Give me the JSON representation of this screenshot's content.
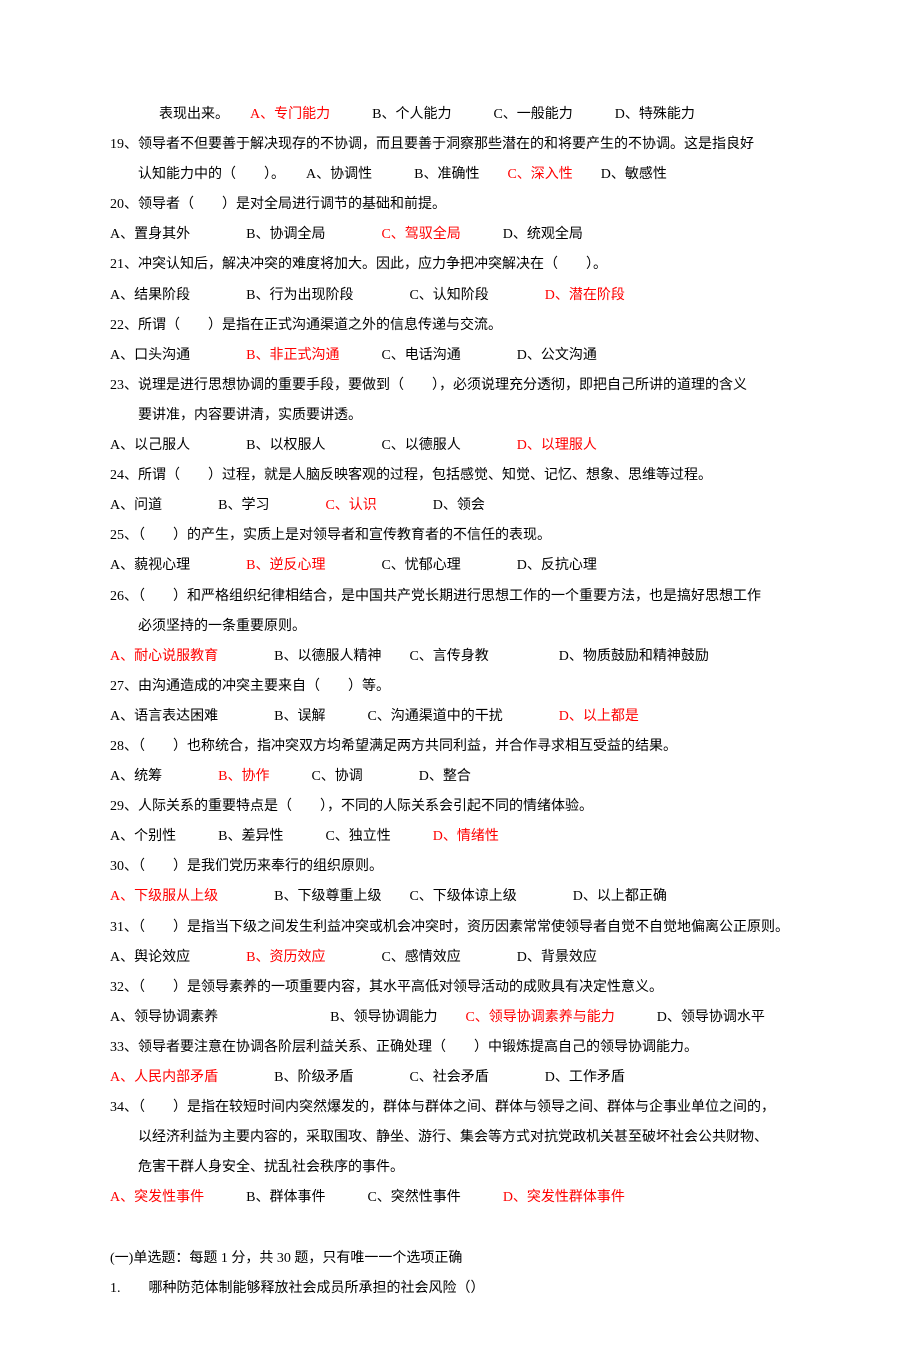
{
  "colors": {
    "text": "#000000",
    "highlight": "#ff0000",
    "background": "#ffffff"
  },
  "typography": {
    "font_family": "SimSun",
    "font_size_pt": 10.5,
    "line_height": 2.15
  },
  "q18": {
    "tail": "表现出来。　　",
    "a": "A、专门能力",
    "b": "　　　B、个人能力　　　C、一般能力　　　D、特殊能力"
  },
  "q19": {
    "stem": "19、领导者不但要善于解决现存的不协调，而且要善于洞察那些潜在的和将要产生的不协调。这是指良好",
    "stem2": "认知能力中的（　　）。　　A、协调性　　　B、准确性　　",
    "c": "C、深入性",
    "d": "　　D、敏感性"
  },
  "q20": {
    "stem": "20、领导者（　　）是对全局进行调节的基础和前提。",
    "opts1": "A、置身其外　　　　B、协调全局　　　　",
    "c": "C、驾驭全局",
    "opts2": "　　　D、统观全局"
  },
  "q21": {
    "stem": "21、冲突认知后，解决冲突的难度将加大。因此，应力争把冲突解决在（　　）。",
    "opts1": "A、结果阶段　　　　B、行为出现阶段　　　　C、认知阶段　　　　",
    "d": "D、潜在阶段"
  },
  "q22": {
    "stem": "22、所谓（　　）是指在正式沟通渠道之外的信息传递与交流。",
    "a1": "A、口头沟通　　　　",
    "b": "B、非正式沟通",
    "a2": "　　　C、电话沟通　　　　D、公文沟通"
  },
  "q23": {
    "stem": "23、说理是进行思想协调的重要手段，要做到（　　），必须说理充分透彻，即把自己所讲的道理的含义",
    "stem2": "要讲准，内容要讲清，实质要讲透。",
    "opts1": "A、以己服人　　　　B、以权服人　　　　C、以德服人　　　　",
    "d": "D、以理服人"
  },
  "q24": {
    "stem": "24、所谓（　　）过程，就是人脑反映客观的过程，包括感觉、知觉、记忆、想象、思维等过程。",
    "a1": "A、问道　　　　B、学习　　　　",
    "c": "C、认识",
    "a2": "　　　　D、领会"
  },
  "q25": {
    "stem": "25、（　　）的产生，实质上是对领导者和宣传教育者的不信任的表现。",
    "a1": "A、藐视心理　　　　",
    "b": "B、逆反心理",
    "a2": "　　　　C、忧郁心理　　　　D、反抗心理"
  },
  "q26": {
    "stem": "26、（　　）和严格组织纪律相结合，是中国共产党长期进行思想工作的一个重要方法，也是搞好思想工作",
    "stem2": "必须坚持的一条重要原则。",
    "a": "A、耐心说服教育",
    "rest": "　　　　B、以德服人精神　　C、言传身教　　　　　D、物质鼓励和精神鼓励"
  },
  "q27": {
    "stem": "27、由沟通造成的冲突主要来自（　　）等。",
    "opts1": "A、语言表达困难　　　　B、误解　　　C、沟通渠道中的干扰　　　　",
    "d": "D、以上都是"
  },
  "q28": {
    "stem": "28、（　　）也称统合，指冲突双方均希望满足两方共同利益，并合作寻求相互受益的结果。",
    "a1": "A、统筹　　　　",
    "b": "B、协作",
    "a2": "　　　C、协调　　　　D、整合"
  },
  "q29": {
    "stem": "29、人际关系的重要特点是（　　），不同的人际关系会引起不同的情绪体验。",
    "a1": "A、个别性　　　B、差异性　　　C、独立性　　　",
    "d": "D、情绪性"
  },
  "q30": {
    "stem": "30、（　　）是我们党历来奉行的组织原则。",
    "a": "A、下级服从上级",
    "rest": "　　　　B、下级尊重上级　　C、下级体谅上级　　　　D、以上都正确"
  },
  "q31": {
    "stem": "31、（　　）是指当下级之间发生利益冲突或机会冲突时，资历因素常常使领导者自觉不自觉地偏离公正原则。",
    "a1": "A、舆论效应　　　　",
    "b": "B、资历效应",
    "a2": "　　　　C、感情效应　　　　D、背景效应"
  },
  "q32": {
    "stem": "32、（　　）是领导素养的一项重要内容，其水平高低对领导活动的成败具有决定性意义。",
    "a1": "A、领导协调素养　　　　　　　　B、领导协调能力　　",
    "c": "C、领导协调素养与能力",
    "a2": "　　　D、领导协调水平"
  },
  "q33": {
    "stem": "33、领导者要注意在协调各阶层利益关系、正确处理（　　）中锻炼提高自己的领导协调能力。",
    "a": "A、人民内部矛盾",
    "rest": "　　　　B、阶级矛盾　　　　C、社会矛盾　　　　D、工作矛盾"
  },
  "q34": {
    "stem": "34、（　　）是指在较短时间内突然爆发的，群体与群体之间、群体与领导之间、群体与企事业单位之间的，",
    "stem2": "以经济利益为主要内容的，采取围攻、静坐、游行、集会等方式对抗党政机关甚至破坏社会公共财物、",
    "stem3": "危害干群人身安全、扰乱社会秩序的事件。",
    "a": "A、突发性事件",
    "mid": "　　　B、群体事件　　　C、突然性事件　　　",
    "d": "D、突发性群体事件"
  },
  "section2": {
    "heading": "(一)单选题：每题 1 分，共 30 题，只有唯一一个选项正确",
    "q1": "1.　　哪种防范体制能够释放社会成员所承担的社会风险（）"
  }
}
